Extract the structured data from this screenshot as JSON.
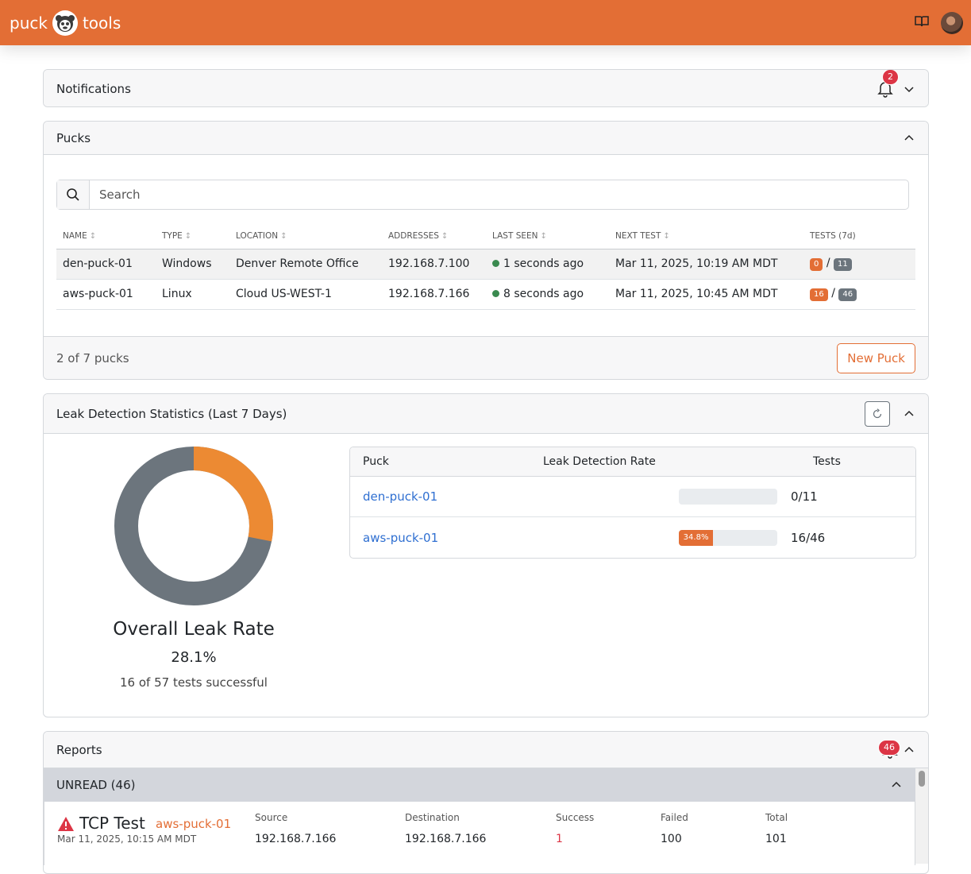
{
  "navbar": {
    "brand_left": "puck",
    "brand_right": "tools",
    "icons": [
      "book-icon",
      "avatar"
    ]
  },
  "notifications": {
    "title": "Notifications",
    "badge_count": "2"
  },
  "pucks": {
    "title": "Pucks",
    "search_placeholder": "Search",
    "columns": [
      "NAME",
      "TYPE",
      "LOCATION",
      "ADDRESSES",
      "LAST SEEN",
      "NEXT TEST",
      "TESTS (7d)"
    ],
    "rows": [
      {
        "name": "den-puck-01",
        "type": "Windows",
        "location": "Denver Remote Office",
        "address": "192.168.7.100",
        "last_seen": "1 seconds ago",
        "next_test": "Mar 11, 2025, 10:19 AM MDT",
        "tests_success": "0",
        "tests_sep": "/",
        "tests_total": "11"
      },
      {
        "name": "aws-puck-01",
        "type": "Linux",
        "location": "Cloud US-WEST-1",
        "address": "192.168.7.166",
        "last_seen": "8 seconds ago",
        "next_test": "Mar 11, 2025, 10:45 AM MDT",
        "tests_success": "16",
        "tests_sep": "/",
        "tests_total": "46"
      }
    ],
    "footer_count": "2 of 7 pucks",
    "new_button": "New Puck"
  },
  "leak_stats": {
    "title": "Leak Detection Statistics (Last 7 Days)",
    "overall_label": "Overall Leak Rate",
    "overall_rate": "28.1%",
    "overall_fraction": 0.281,
    "overall_sub": "16 of 57 tests successful",
    "colors": {
      "leak": "#ec8a33",
      "rest": "#6c757d"
    },
    "table_headers": [
      "Puck",
      "Leak Detection Rate",
      "Tests"
    ],
    "rows": [
      {
        "puck": "den-puck-01",
        "rate_label": "",
        "rate": 0,
        "tests": "0/11"
      },
      {
        "puck": "aws-puck-01",
        "rate_label": "34.8%",
        "rate": 34.8,
        "tests": "16/46"
      }
    ]
  },
  "reports": {
    "title": "Reports",
    "badge_count": "46",
    "unread_label": "UNREAD (46)",
    "items": [
      {
        "title": "TCP Test",
        "puck": "aws-puck-01",
        "date": "Mar 11, 2025, 10:15 AM MDT",
        "source_label": "Source",
        "source": "192.168.7.166",
        "dest_label": "Destination",
        "dest": "192.168.7.166",
        "success_label": "Success",
        "success": "1",
        "failed_label": "Failed",
        "failed": "100",
        "total_label": "Total",
        "total": "101"
      }
    ]
  }
}
